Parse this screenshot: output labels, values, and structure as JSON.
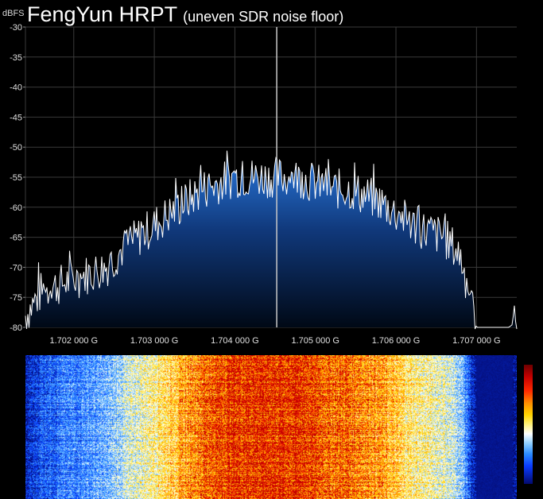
{
  "header": {
    "unit_label": "dBFS",
    "title": "FengYun HRPT",
    "subtitle": "(uneven SDR noise floor)"
  },
  "chart_data": {
    "type": "line",
    "ylabel": "dBFS",
    "ylim": [
      -80,
      -30
    ],
    "y_ticks": [
      "-30",
      "-35",
      "-40",
      "-45",
      "-50",
      "-55",
      "-60",
      "-65",
      "-70",
      "-75",
      "-80"
    ],
    "xlim": [
      1.7014,
      1.7075
    ],
    "x_ticks": [
      {
        "value": 1.702,
        "label": "1.702 000 G"
      },
      {
        "value": 1.703,
        "label": "1.703 000 G"
      },
      {
        "value": 1.704,
        "label": "1.704 000 G"
      },
      {
        "value": 1.705,
        "label": "1.705 000 G"
      },
      {
        "value": 1.706,
        "label": "1.706 000 G"
      },
      {
        "value": 1.707,
        "label": "1.707 000 G"
      }
    ],
    "center_marker_ghz": 1.70452,
    "grid": true,
    "series": [
      {
        "x": [
          1.7014,
          1.7016,
          1.7018,
          1.702,
          1.7022,
          1.7024,
          1.7026,
          1.7028,
          1.703,
          1.7032,
          1.7034,
          1.7036,
          1.7038,
          1.704,
          1.7042,
          1.7044,
          1.7046,
          1.7048,
          1.705,
          1.7052,
          1.7054,
          1.7056,
          1.7058,
          1.706,
          1.7062,
          1.7064,
          1.7066,
          1.7068,
          1.707,
          1.7072,
          1.7074,
          1.7075
        ],
        "y": [
          -78,
          -74,
          -73,
          -72,
          -71,
          -70,
          -67,
          -65,
          -63,
          -61,
          -59,
          -57,
          -56,
          -55,
          -55,
          -55,
          -55,
          -55,
          -56,
          -57,
          -57,
          -58,
          -59,
          -61,
          -63,
          -64,
          -65,
          -68,
          -80,
          -80,
          -80,
          -79
        ]
      }
    ]
  },
  "colors": {
    "background": "#000000",
    "trace": "#ffffff",
    "grid": "#3a3a3a",
    "fill_top": "#1f6fd1",
    "fill_bottom": "#000814"
  }
}
